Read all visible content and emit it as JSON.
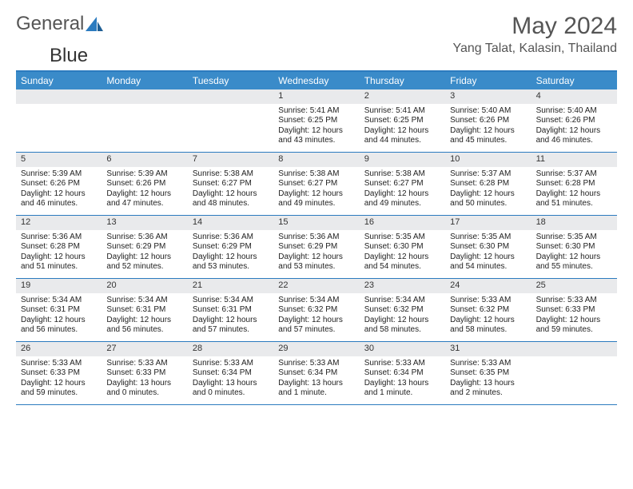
{
  "brand": {
    "part1": "General",
    "part2": "Blue"
  },
  "title": "May 2024",
  "location": "Yang Talat, Kalasin, Thailand",
  "colors": {
    "header_bg": "#3a8bc9",
    "border": "#2b7bbf",
    "date_bg": "#e9eaec",
    "page_bg": "#ffffff",
    "text": "#333333"
  },
  "day_headers": [
    "Sunday",
    "Monday",
    "Tuesday",
    "Wednesday",
    "Thursday",
    "Friday",
    "Saturday"
  ],
  "weeks": [
    [
      {
        "date": "",
        "sunrise": "",
        "sunset": "",
        "daylight": ""
      },
      {
        "date": "",
        "sunrise": "",
        "sunset": "",
        "daylight": ""
      },
      {
        "date": "",
        "sunrise": "",
        "sunset": "",
        "daylight": ""
      },
      {
        "date": "1",
        "sunrise": "Sunrise: 5:41 AM",
        "sunset": "Sunset: 6:25 PM",
        "daylight": "Daylight: 12 hours and 43 minutes."
      },
      {
        "date": "2",
        "sunrise": "Sunrise: 5:41 AM",
        "sunset": "Sunset: 6:25 PM",
        "daylight": "Daylight: 12 hours and 44 minutes."
      },
      {
        "date": "3",
        "sunrise": "Sunrise: 5:40 AM",
        "sunset": "Sunset: 6:26 PM",
        "daylight": "Daylight: 12 hours and 45 minutes."
      },
      {
        "date": "4",
        "sunrise": "Sunrise: 5:40 AM",
        "sunset": "Sunset: 6:26 PM",
        "daylight": "Daylight: 12 hours and 46 minutes."
      }
    ],
    [
      {
        "date": "5",
        "sunrise": "Sunrise: 5:39 AM",
        "sunset": "Sunset: 6:26 PM",
        "daylight": "Daylight: 12 hours and 46 minutes."
      },
      {
        "date": "6",
        "sunrise": "Sunrise: 5:39 AM",
        "sunset": "Sunset: 6:26 PM",
        "daylight": "Daylight: 12 hours and 47 minutes."
      },
      {
        "date": "7",
        "sunrise": "Sunrise: 5:38 AM",
        "sunset": "Sunset: 6:27 PM",
        "daylight": "Daylight: 12 hours and 48 minutes."
      },
      {
        "date": "8",
        "sunrise": "Sunrise: 5:38 AM",
        "sunset": "Sunset: 6:27 PM",
        "daylight": "Daylight: 12 hours and 49 minutes."
      },
      {
        "date": "9",
        "sunrise": "Sunrise: 5:38 AM",
        "sunset": "Sunset: 6:27 PM",
        "daylight": "Daylight: 12 hours and 49 minutes."
      },
      {
        "date": "10",
        "sunrise": "Sunrise: 5:37 AM",
        "sunset": "Sunset: 6:28 PM",
        "daylight": "Daylight: 12 hours and 50 minutes."
      },
      {
        "date": "11",
        "sunrise": "Sunrise: 5:37 AM",
        "sunset": "Sunset: 6:28 PM",
        "daylight": "Daylight: 12 hours and 51 minutes."
      }
    ],
    [
      {
        "date": "12",
        "sunrise": "Sunrise: 5:36 AM",
        "sunset": "Sunset: 6:28 PM",
        "daylight": "Daylight: 12 hours and 51 minutes."
      },
      {
        "date": "13",
        "sunrise": "Sunrise: 5:36 AM",
        "sunset": "Sunset: 6:29 PM",
        "daylight": "Daylight: 12 hours and 52 minutes."
      },
      {
        "date": "14",
        "sunrise": "Sunrise: 5:36 AM",
        "sunset": "Sunset: 6:29 PM",
        "daylight": "Daylight: 12 hours and 53 minutes."
      },
      {
        "date": "15",
        "sunrise": "Sunrise: 5:36 AM",
        "sunset": "Sunset: 6:29 PM",
        "daylight": "Daylight: 12 hours and 53 minutes."
      },
      {
        "date": "16",
        "sunrise": "Sunrise: 5:35 AM",
        "sunset": "Sunset: 6:30 PM",
        "daylight": "Daylight: 12 hours and 54 minutes."
      },
      {
        "date": "17",
        "sunrise": "Sunrise: 5:35 AM",
        "sunset": "Sunset: 6:30 PM",
        "daylight": "Daylight: 12 hours and 54 minutes."
      },
      {
        "date": "18",
        "sunrise": "Sunrise: 5:35 AM",
        "sunset": "Sunset: 6:30 PM",
        "daylight": "Daylight: 12 hours and 55 minutes."
      }
    ],
    [
      {
        "date": "19",
        "sunrise": "Sunrise: 5:34 AM",
        "sunset": "Sunset: 6:31 PM",
        "daylight": "Daylight: 12 hours and 56 minutes."
      },
      {
        "date": "20",
        "sunrise": "Sunrise: 5:34 AM",
        "sunset": "Sunset: 6:31 PM",
        "daylight": "Daylight: 12 hours and 56 minutes."
      },
      {
        "date": "21",
        "sunrise": "Sunrise: 5:34 AM",
        "sunset": "Sunset: 6:31 PM",
        "daylight": "Daylight: 12 hours and 57 minutes."
      },
      {
        "date": "22",
        "sunrise": "Sunrise: 5:34 AM",
        "sunset": "Sunset: 6:32 PM",
        "daylight": "Daylight: 12 hours and 57 minutes."
      },
      {
        "date": "23",
        "sunrise": "Sunrise: 5:34 AM",
        "sunset": "Sunset: 6:32 PM",
        "daylight": "Daylight: 12 hours and 58 minutes."
      },
      {
        "date": "24",
        "sunrise": "Sunrise: 5:33 AM",
        "sunset": "Sunset: 6:32 PM",
        "daylight": "Daylight: 12 hours and 58 minutes."
      },
      {
        "date": "25",
        "sunrise": "Sunrise: 5:33 AM",
        "sunset": "Sunset: 6:33 PM",
        "daylight": "Daylight: 12 hours and 59 minutes."
      }
    ],
    [
      {
        "date": "26",
        "sunrise": "Sunrise: 5:33 AM",
        "sunset": "Sunset: 6:33 PM",
        "daylight": "Daylight: 12 hours and 59 minutes."
      },
      {
        "date": "27",
        "sunrise": "Sunrise: 5:33 AM",
        "sunset": "Sunset: 6:33 PM",
        "daylight": "Daylight: 13 hours and 0 minutes."
      },
      {
        "date": "28",
        "sunrise": "Sunrise: 5:33 AM",
        "sunset": "Sunset: 6:34 PM",
        "daylight": "Daylight: 13 hours and 0 minutes."
      },
      {
        "date": "29",
        "sunrise": "Sunrise: 5:33 AM",
        "sunset": "Sunset: 6:34 PM",
        "daylight": "Daylight: 13 hours and 1 minute."
      },
      {
        "date": "30",
        "sunrise": "Sunrise: 5:33 AM",
        "sunset": "Sunset: 6:34 PM",
        "daylight": "Daylight: 13 hours and 1 minute."
      },
      {
        "date": "31",
        "sunrise": "Sunrise: 5:33 AM",
        "sunset": "Sunset: 6:35 PM",
        "daylight": "Daylight: 13 hours and 2 minutes."
      },
      {
        "date": "",
        "sunrise": "",
        "sunset": "",
        "daylight": ""
      }
    ]
  ]
}
